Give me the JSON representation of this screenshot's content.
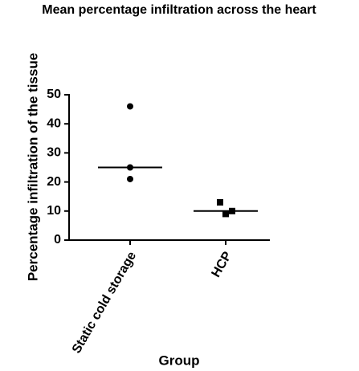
{
  "chart_data": {
    "type": "dot",
    "title": "Mean percentage infiltration across the heart",
    "y_label": "Percentage infiltration of the tissue",
    "x_label": "Group",
    "categories": [
      "Static cold storage",
      "HCP"
    ],
    "points": [
      [
        46,
        25,
        21
      ],
      [
        13,
        9,
        10
      ]
    ],
    "markers": [
      "circle",
      "square"
    ],
    "center_lines": [
      25,
      10
    ],
    "color": "#000000",
    "ylim": [
      0,
      50
    ],
    "yticks": [
      0,
      10,
      20,
      30,
      40,
      50
    ]
  }
}
